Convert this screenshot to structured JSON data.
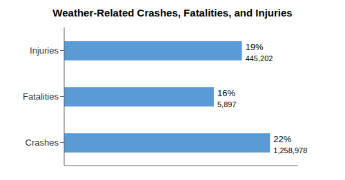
{
  "chart_data": {
    "type": "bar",
    "orientation": "horizontal",
    "title": "Weather-Related  Crashes, Fatalities, and Injuries",
    "categories": [
      "Crashes",
      "Fatalities",
      "Injuries"
    ],
    "values": [
      22,
      16,
      19
    ],
    "value_labels": [
      "22%",
      "16%",
      "19%"
    ],
    "data_labels": true,
    "annotations": [
      "1,258,978",
      "5,897",
      "445,202"
    ],
    "color": "#5b9bd5",
    "xlim": [
      0,
      25
    ],
    "tick_labels": "y",
    "grid": false
  }
}
